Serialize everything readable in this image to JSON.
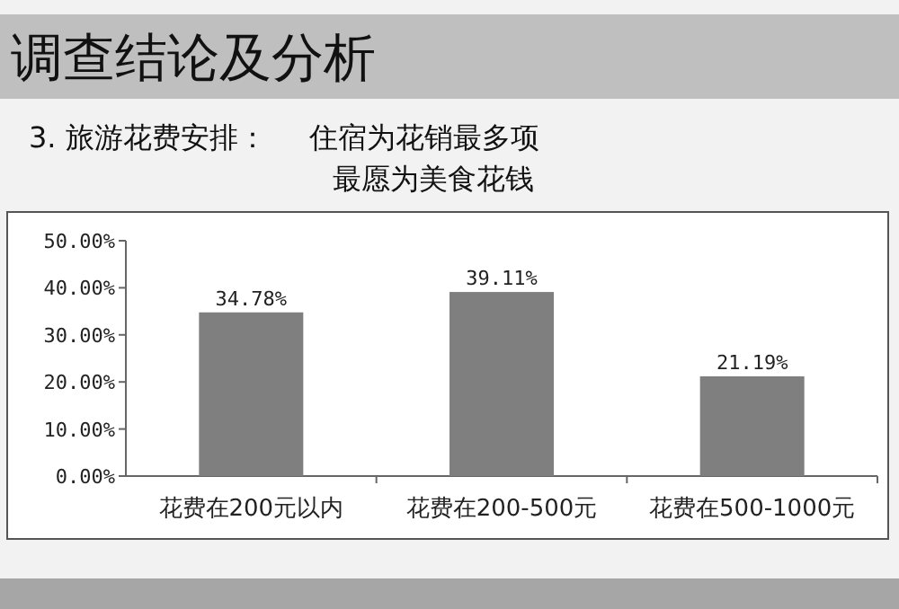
{
  "chart_data": {
    "type": "bar",
    "title": "调查结论及分析",
    "subtitle": "3. 旅游花费安排：",
    "annotations": [
      "住宿为花销最多项",
      "最愿为美食花钱"
    ],
    "categories": [
      "花费在200元以内",
      "花费在200-500元",
      "花费在500-1000元"
    ],
    "values": [
      34.78,
      39.11,
      21.19
    ],
    "value_labels": [
      "34.78%",
      "39.11%",
      "21.19%"
    ],
    "color": "#7f7f7f",
    "ylim": [
      0,
      50
    ],
    "yticks": [
      {
        "value": 0,
        "label": "0.00%"
      },
      {
        "value": 10,
        "label": "10.00%"
      },
      {
        "value": 20,
        "label": "20.00%"
      },
      {
        "value": 30,
        "label": "30.00%"
      },
      {
        "value": 40,
        "label": "40.00%"
      },
      {
        "value": 50,
        "label": "50.00%"
      }
    ]
  }
}
